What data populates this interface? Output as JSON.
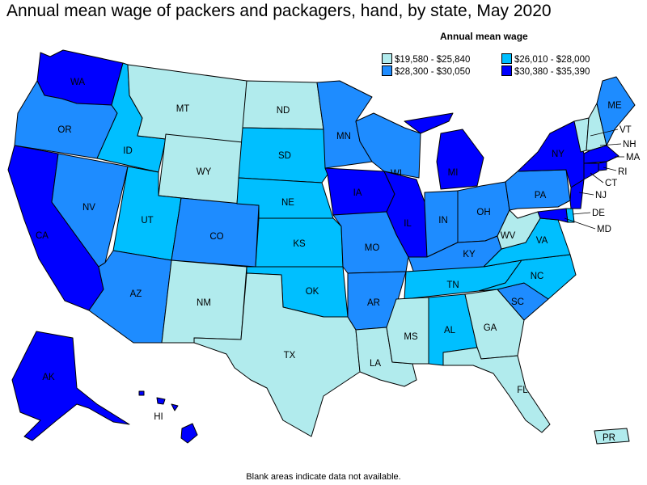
{
  "title": "Annual mean wage of packers and packagers, hand, by state, May 2020",
  "legend": {
    "title": "Annual mean wage",
    "bins": [
      {
        "label": "$19,580 - $25,840",
        "color": "#b1ebed"
      },
      {
        "label": "$26,010 - $28,000",
        "color": "#00bfff"
      },
      {
        "label": "$28,300 - $30,050",
        "color": "#1e8cff"
      },
      {
        "label": "$30,380 - $35,390",
        "color": "#0000ff"
      }
    ]
  },
  "footnote": "Blank areas indicate data not available.",
  "states": [
    {
      "code": "WA",
      "bin": 3
    },
    {
      "code": "OR",
      "bin": 2
    },
    {
      "code": "CA",
      "bin": 3
    },
    {
      "code": "ID",
      "bin": 1
    },
    {
      "code": "NV",
      "bin": 2
    },
    {
      "code": "MT",
      "bin": 0
    },
    {
      "code": "WY",
      "bin": 0
    },
    {
      "code": "UT",
      "bin": 1
    },
    {
      "code": "CO",
      "bin": 2
    },
    {
      "code": "AZ",
      "bin": 2
    },
    {
      "code": "NM",
      "bin": 0
    },
    {
      "code": "ND",
      "bin": 0
    },
    {
      "code": "SD",
      "bin": 1
    },
    {
      "code": "NE",
      "bin": 1
    },
    {
      "code": "KS",
      "bin": 1
    },
    {
      "code": "OK",
      "bin": 1
    },
    {
      "code": "TX",
      "bin": 0
    },
    {
      "code": "MN",
      "bin": 2
    },
    {
      "code": "IA",
      "bin": 3
    },
    {
      "code": "MO",
      "bin": 2
    },
    {
      "code": "AR",
      "bin": 2
    },
    {
      "code": "LA",
      "bin": 0
    },
    {
      "code": "WI",
      "bin": 2
    },
    {
      "code": "IL",
      "bin": 3
    },
    {
      "code": "MI",
      "bin": 3
    },
    {
      "code": "IN",
      "bin": 2
    },
    {
      "code": "OH",
      "bin": 2
    },
    {
      "code": "KY",
      "bin": 2
    },
    {
      "code": "TN",
      "bin": 1
    },
    {
      "code": "MS",
      "bin": 0
    },
    {
      "code": "AL",
      "bin": 1
    },
    {
      "code": "GA",
      "bin": 0
    },
    {
      "code": "FL",
      "bin": 0
    },
    {
      "code": "SC",
      "bin": 2
    },
    {
      "code": "NC",
      "bin": 1
    },
    {
      "code": "VA",
      "bin": 1
    },
    {
      "code": "WV",
      "bin": 0
    },
    {
      "code": "PA",
      "bin": 2
    },
    {
      "code": "NY",
      "bin": 3
    },
    {
      "code": "VT",
      "bin": 0
    },
    {
      "code": "NH",
      "bin": 0
    },
    {
      "code": "ME",
      "bin": 2
    },
    {
      "code": "MA",
      "bin": 3
    },
    {
      "code": "RI",
      "bin": 3
    },
    {
      "code": "CT",
      "bin": 3
    },
    {
      "code": "NJ",
      "bin": 3
    },
    {
      "code": "DE",
      "bin": 1
    },
    {
      "code": "MD",
      "bin": 3
    },
    {
      "code": "AK",
      "bin": 3
    },
    {
      "code": "HI",
      "bin": 3
    },
    {
      "code": "PR",
      "bin": 0
    }
  ]
}
